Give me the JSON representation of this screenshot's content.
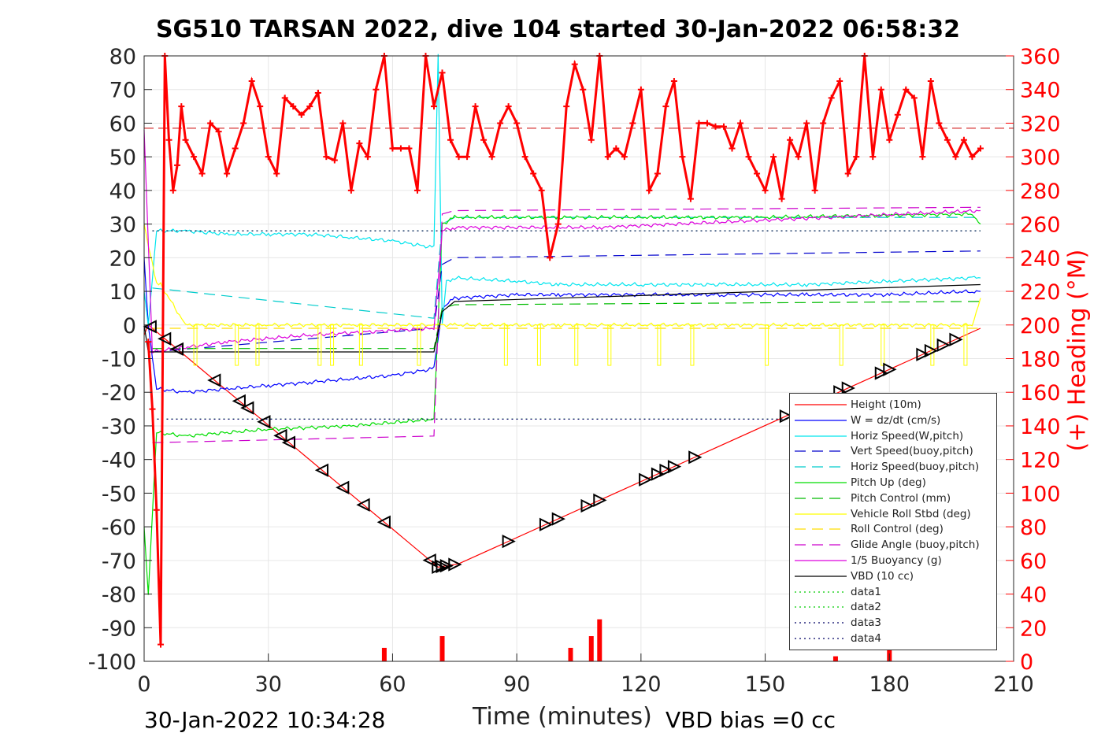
{
  "title": "SG510 TARSAN 2022, dive 104 started 30-Jan-2022 06:58:32",
  "footer_left": "30-Jan-2022 10:34:28",
  "footer_right": "VBD bias =0 cc",
  "chart_data": {
    "type": "line",
    "xlabel": "Time (minutes)",
    "ylabel": "",
    "ylabel_right": "(+) Heading (°M)",
    "xlim": [
      0,
      210
    ],
    "ylim": [
      -100,
      80
    ],
    "ylim_right": [
      0,
      360
    ],
    "xticks": [
      0,
      30,
      60,
      90,
      120,
      150,
      180,
      210
    ],
    "yticks": [
      -100,
      -90,
      -80,
      -70,
      -60,
      -50,
      -40,
      -30,
      -20,
      -10,
      0,
      10,
      20,
      30,
      40,
      50,
      60,
      70,
      80
    ],
    "yticks_right": [
      0,
      20,
      40,
      60,
      80,
      100,
      120,
      140,
      160,
      180,
      200,
      220,
      240,
      260,
      280,
      300,
      320,
      340,
      360
    ],
    "grid": true,
    "legend_position": "lower-right",
    "series": [
      {
        "name": "Height (10m)",
        "color": "#ff0000",
        "style": "solid",
        "x": [
          0,
          1,
          2,
          71,
          76,
          202
        ],
        "y": [
          -3,
          0,
          -1,
          -72,
          -71,
          -1
        ]
      },
      {
        "name": "W = dz/dt (cm/s)",
        "color": "#0000ff",
        "style": "solid",
        "x": [
          0,
          1,
          3,
          10,
          20,
          30,
          40,
          50,
          60,
          70,
          72,
          75,
          90,
          100,
          120,
          140,
          160,
          180,
          200,
          202
        ],
        "y": [
          20,
          0,
          -19,
          -20,
          -19,
          -18,
          -17,
          -16,
          -15,
          -13,
          5,
          8,
          9,
          9,
          9,
          9,
          9,
          9,
          10,
          10
        ]
      },
      {
        "name": "Horiz Speed(W,pitch)",
        "color": "#00e5ee",
        "style": "solid",
        "x": [
          0,
          1,
          3,
          10,
          20,
          30,
          40,
          50,
          60,
          70,
          71,
          72,
          73,
          75,
          90,
          100,
          120,
          140,
          160,
          180,
          200,
          202
        ],
        "y": [
          10,
          0,
          28,
          28,
          27,
          27,
          27,
          26,
          25,
          23,
          80,
          0,
          13,
          14,
          13,
          12,
          12,
          12,
          12,
          13,
          14,
          14
        ]
      },
      {
        "name": "Vert Speed(buoy,pitch)",
        "color": "#0000cc",
        "style": "dashed",
        "x": [
          2,
          70,
          72,
          75,
          202
        ],
        "y": [
          -8,
          -1,
          18,
          20,
          22
        ]
      },
      {
        "name": "Horiz Speed(buoy,pitch)",
        "color": "#00cccc",
        "style": "dashed",
        "x": [
          2,
          70,
          72,
          75,
          202
        ],
        "y": [
          11,
          2,
          30,
          32,
          32
        ]
      },
      {
        "name": "Pitch Up (deg)",
        "color": "#00dd00",
        "style": "solid",
        "x": [
          0,
          1,
          3,
          10,
          30,
          50,
          70,
          72,
          75,
          100,
          150,
          200,
          202
        ],
        "y": [
          -60,
          -80,
          -32,
          -33,
          -31,
          -30,
          -28,
          30,
          32,
          32,
          32,
          33,
          30
        ]
      },
      {
        "name": "Pitch Control (mm)",
        "color": "#00bb00",
        "style": "dashed",
        "x": [
          2,
          70,
          72,
          75,
          202
        ],
        "y": [
          -7,
          -7,
          5,
          6,
          7
        ]
      },
      {
        "name": "Vehicle Roll Stbd (deg)",
        "color": "#ffff00",
        "style": "solid",
        "x": [
          0,
          3,
          4,
          10,
          30,
          50,
          70,
          72,
          75,
          100,
          150,
          200,
          202
        ],
        "y": [
          30,
          12,
          12,
          0,
          0,
          0,
          0,
          0,
          0,
          0,
          0,
          0,
          8
        ]
      },
      {
        "name": "Roll Control (deg)",
        "color": "#ffdd00",
        "style": "dashed",
        "x": [
          2,
          202
        ],
        "y": [
          -1,
          -1
        ]
      },
      {
        "name": "Glide Angle (buoy,pitch)",
        "color": "#cc00cc",
        "style": "dashed",
        "x": [
          2,
          70,
          72,
          75,
          202
        ],
        "y": [
          -35,
          -33,
          33,
          34,
          35
        ]
      },
      {
        "name": "1/5 Buoyancy (g)",
        "color": "#dd00dd",
        "style": "solid",
        "x": [
          0,
          2,
          20,
          40,
          70,
          72,
          75,
          110,
          202
        ],
        "y": [
          58,
          -8,
          -5,
          -3,
          -1,
          28,
          29,
          29,
          34
        ]
      },
      {
        "name": "VBD (10 cc)",
        "color": "#000000",
        "style": "solid",
        "x": [
          0,
          1,
          5,
          70,
          72,
          75,
          202
        ],
        "y": [
          0,
          -8,
          -8,
          -8,
          4,
          7,
          12
        ]
      },
      {
        "name": "data1",
        "color": "#00cc00",
        "style": "dotted",
        "x": [
          2,
          202
        ],
        "y": [
          -28,
          -28
        ]
      },
      {
        "name": "data2",
        "color": "#00cc00",
        "style": "dotted",
        "x": [
          2,
          202
        ],
        "y": [
          28,
          28
        ]
      },
      {
        "name": "data3",
        "color": "#000066",
        "style": "dotted",
        "x": [
          2,
          202
        ],
        "y": [
          -28,
          -28
        ]
      },
      {
        "name": "data4",
        "color": "#000066",
        "style": "dotted",
        "x": [
          2,
          202
        ],
        "y": [
          28,
          28
        ]
      }
    ],
    "heading": {
      "color": "#ff0000",
      "marker": "+",
      "mean": 317,
      "x": [
        1,
        2,
        3,
        4,
        5,
        6,
        7,
        8,
        9,
        10,
        12,
        14,
        16,
        18,
        20,
        22,
        24,
        26,
        28,
        30,
        32,
        34,
        36,
        38,
        40,
        42,
        44,
        46,
        48,
        50,
        52,
        54,
        56,
        58,
        60,
        62,
        64,
        66,
        68,
        70,
        72,
        74,
        76,
        78,
        80,
        82,
        84,
        86,
        88,
        90,
        92,
        94,
        96,
        98,
        100,
        102,
        104,
        106,
        108,
        110,
        112,
        114,
        116,
        118,
        120,
        122,
        124,
        126,
        128,
        130,
        132,
        134,
        136,
        138,
        140,
        142,
        144,
        146,
        148,
        150,
        152,
        154,
        156,
        158,
        160,
        162,
        164,
        166,
        168,
        170,
        172,
        174,
        176,
        178,
        180,
        182,
        184,
        186,
        188,
        190,
        192,
        194,
        196,
        198,
        200,
        202
      ],
      "y": [
        190,
        150,
        90,
        10,
        360,
        310,
        280,
        295,
        330,
        310,
        300,
        290,
        320,
        315,
        290,
        305,
        320,
        345,
        330,
        300,
        290,
        335,
        330,
        325,
        330,
        338,
        300,
        298,
        320,
        280,
        308,
        300,
        340,
        360,
        305,
        305,
        305,
        280,
        360,
        330,
        350,
        310,
        300,
        300,
        330,
        310,
        300,
        320,
        330,
        320,
        300,
        290,
        280,
        240,
        260,
        330,
        355,
        340,
        310,
        360,
        300,
        305,
        300,
        320,
        340,
        280,
        290,
        330,
        345,
        300,
        275,
        320,
        320,
        318,
        318,
        305,
        320,
        300,
        290,
        280,
        300,
        275,
        310,
        300,
        320,
        280,
        320,
        335,
        345,
        290,
        300,
        360,
        300,
        340,
        310,
        325,
        340,
        335,
        300,
        345,
        320,
        310,
        300,
        310,
        300,
        305
      ]
    },
    "heading_blips": [
      {
        "x": 58,
        "y": [
          0,
          8
        ]
      },
      {
        "x": 72,
        "y": [
          0,
          15
        ]
      },
      {
        "x": 103,
        "y": [
          0,
          8
        ]
      },
      {
        "x": 108,
        "y": [
          0,
          15
        ]
      },
      {
        "x": 110,
        "y": [
          0,
          25
        ]
      },
      {
        "x": 167,
        "y": [
          0,
          3
        ]
      },
      {
        "x": 180,
        "y": [
          0,
          15
        ]
      }
    ],
    "triangles_x": [
      1.5,
      5,
      8,
      17,
      23,
      25,
      29,
      33,
      35,
      43,
      48,
      53,
      58,
      69,
      71,
      72,
      73,
      75,
      88,
      97,
      100,
      107,
      110,
      121,
      124,
      126,
      128,
      133,
      155,
      163,
      168,
      170,
      178,
      180,
      188,
      190,
      193,
      196
    ]
  },
  "legend_items": [
    "Height (10m)",
    "W = dz/dt (cm/s)",
    "Horiz Speed(W,pitch)",
    "Vert Speed(buoy,pitch)",
    "Horiz Speed(buoy,pitch)",
    "Pitch Up (deg)",
    "Pitch Control (mm)",
    "Vehicle Roll Stbd (deg)",
    "Roll Control (deg)",
    "Glide Angle (buoy,pitch)",
    "1/5 Buoyancy (g)",
    "VBD (10 cc)",
    "data1",
    "data2",
    "data3",
    "data4"
  ]
}
